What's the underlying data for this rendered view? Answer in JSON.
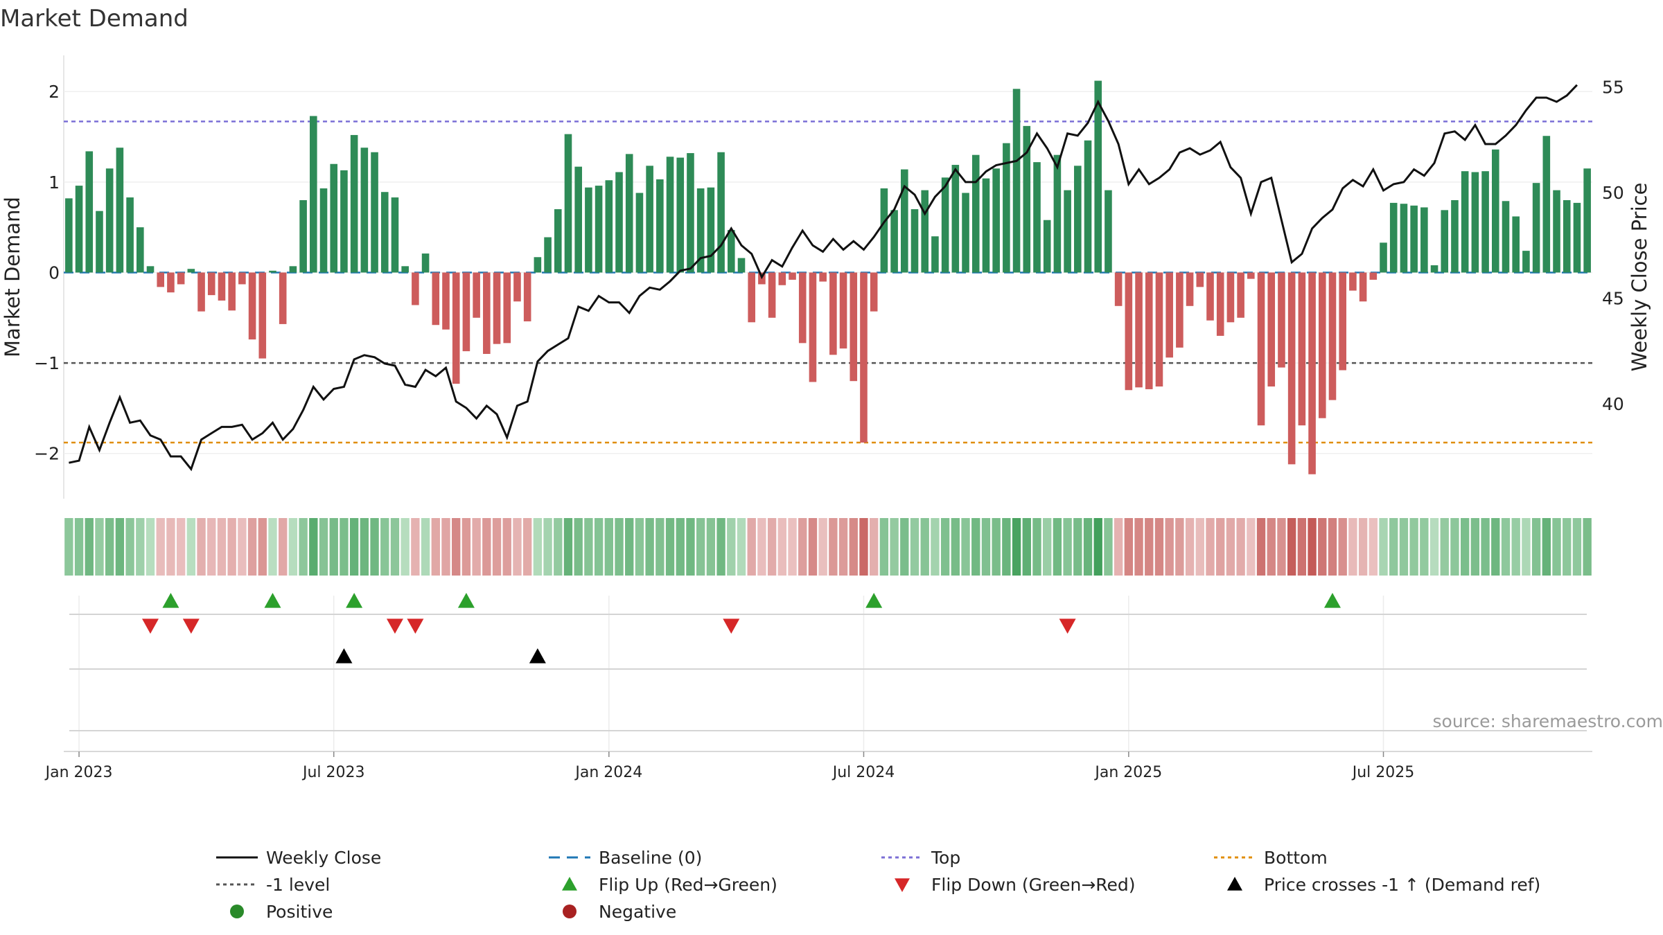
{
  "chart_data": {
    "type": "bar",
    "title": "Market Demand",
    "ylabel_left": "Market Demand",
    "ylabel_right": "Weekly Close Price",
    "ylim_left": [
      -2.5,
      2.4
    ],
    "ylim_right": [
      35.5,
      56.5
    ],
    "yticks_left": [
      2,
      1,
      0,
      -1,
      -2
    ],
    "ytick_labels_left": [
      "2",
      "1",
      "0",
      "−1",
      "−2"
    ],
    "yticks_right": [
      55,
      50,
      45,
      40
    ],
    "ytick_labels_right": [
      "55",
      "50",
      "45",
      "40"
    ],
    "x_start": "2022-12-25",
    "x_step_days": 7,
    "xtick_labels": [
      "Jan 2023",
      "Jul 2023",
      "Jan 2024",
      "Jul 2024",
      "Jan 2025",
      "Jul 2025"
    ],
    "xtick_weeks": [
      1,
      26,
      53,
      78,
      104,
      129
    ],
    "reference_lines": {
      "top": 1.67,
      "bottom": -1.88,
      "minus_one": -1,
      "baseline": 0
    },
    "demand": [
      0.82,
      0.96,
      1.34,
      0.68,
      1.15,
      1.38,
      0.83,
      0.5,
      0.07,
      -0.16,
      -0.22,
      -0.13,
      0.04,
      -0.43,
      -0.25,
      -0.31,
      -0.42,
      -0.13,
      -0.74,
      -0.95,
      0.02,
      -0.57,
      0.07,
      0.8,
      1.73,
      0.93,
      1.2,
      1.13,
      1.52,
      1.38,
      1.33,
      0.89,
      0.83,
      0.07,
      -0.36,
      0.21,
      -0.58,
      -0.63,
      -1.23,
      -0.87,
      -0.5,
      -0.9,
      -0.79,
      -0.78,
      -0.32,
      -0.54,
      0.17,
      0.39,
      0.7,
      1.53,
      1.17,
      0.94,
      0.96,
      1.02,
      1.11,
      1.31,
      0.88,
      1.18,
      1.03,
      1.28,
      1.27,
      1.32,
      0.93,
      0.94,
      1.33,
      0.47,
      0.16,
      -0.55,
      -0.13,
      -0.5,
      -0.14,
      -0.08,
      -0.78,
      -1.21,
      -0.1,
      -0.91,
      -0.84,
      -1.2,
      -1.88,
      -0.43,
      0.93,
      0.69,
      1.14,
      0.7,
      0.91,
      0.4,
      1.05,
      1.19,
      0.88,
      1.3,
      1.04,
      1.15,
      1.43,
      2.03,
      1.62,
      1.22,
      0.58,
      1.3,
      0.91,
      1.18,
      1.46,
      2.12,
      0.91,
      -0.37,
      -1.3,
      -1.27,
      -1.29,
      -1.26,
      -0.94,
      -0.83,
      -0.37,
      -0.16,
      -0.53,
      -0.7,
      -0.55,
      -0.5,
      -0.07,
      -1.69,
      -1.26,
      -1.05,
      -2.12,
      -1.69,
      -2.23,
      -1.61,
      -1.41,
      -1.08,
      -0.2,
      -0.32,
      -0.08,
      0.33,
      0.77,
      0.76,
      0.74,
      0.72,
      0.08,
      0.69,
      0.8,
      1.12,
      1.11,
      1.12,
      1.36,
      0.79,
      0.62,
      0.24,
      0.99,
      1.51,
      0.91,
      0.8,
      0.77,
      1.15
    ],
    "price": [
      37.2,
      37.3,
      38.9,
      37.8,
      39.1,
      40.3,
      39.1,
      39.2,
      38.5,
      38.3,
      37.5,
      37.5,
      36.9,
      38.3,
      38.6,
      38.9,
      38.9,
      39.0,
      38.3,
      38.6,
      39.1,
      38.3,
      38.8,
      39.7,
      40.8,
      40.2,
      40.7,
      40.8,
      42.1,
      42.3,
      42.2,
      41.9,
      41.8,
      40.9,
      40.8,
      41.6,
      41.3,
      41.7,
      40.1,
      39.8,
      39.3,
      39.9,
      39.5,
      38.4,
      39.9,
      40.1,
      42.0,
      42.5,
      42.8,
      43.1,
      44.6,
      44.4,
      45.1,
      44.8,
      44.8,
      44.3,
      45.1,
      45.5,
      45.4,
      45.8,
      46.3,
      46.4,
      46.9,
      47.0,
      47.5,
      48.3,
      47.5,
      47.1,
      46.0,
      46.8,
      46.5,
      47.4,
      48.2,
      47.5,
      47.2,
      47.8,
      47.3,
      47.7,
      47.3,
      47.9,
      48.6,
      49.2,
      50.3,
      49.9,
      49.0,
      49.8,
      50.3,
      51.1,
      50.5,
      50.5,
      51.0,
      51.3,
      51.4,
      51.5,
      51.9,
      52.8,
      52.1,
      51.2,
      52.8,
      52.7,
      53.3,
      54.3,
      53.4,
      52.3,
      50.4,
      51.1,
      50.4,
      50.7,
      51.1,
      51.9,
      52.1,
      51.8,
      52.0,
      52.4,
      51.2,
      50.7,
      49.0,
      50.5,
      50.7,
      48.7,
      46.7,
      47.1,
      48.3,
      48.8,
      49.2,
      50.2,
      50.6,
      50.3,
      51.1,
      50.1,
      50.4,
      50.5,
      51.1,
      50.8,
      51.4,
      52.8,
      52.9,
      52.5,
      53.2,
      52.3,
      52.3,
      52.7,
      53.2,
      53.9,
      54.5,
      54.5,
      54.3,
      54.6,
      55.1
    ],
    "flip_up_weeks": [
      10,
      20,
      28,
      39,
      79,
      124
    ],
    "flip_down_weeks": [
      8,
      12,
      32,
      34,
      65,
      98
    ],
    "price_cross_weeks": [
      27,
      46
    ],
    "source": "source: sharemaestro.com"
  },
  "legend": [
    {
      "label": "Weekly Close",
      "marker": "line",
      "color": "#111111"
    },
    {
      "label": "Baseline (0)",
      "marker": "dash",
      "color": "#1f77b4"
    },
    {
      "label": "Top",
      "marker": "dot",
      "color": "#7b6fd6"
    },
    {
      "label": "Bottom",
      "marker": "dot",
      "color": "#e08e0b"
    },
    {
      "label": "-1 level",
      "marker": "dot",
      "color": "#555555"
    },
    {
      "label": "Flip Up (Red→Green)",
      "marker": "triangle-up",
      "color": "#2ca02c"
    },
    {
      "label": "Flip Down (Green→Red)",
      "marker": "triangle-down",
      "color": "#d62728"
    },
    {
      "label": "Price crosses -1 ↑ (Demand ref)",
      "marker": "triangle-up",
      "color": "#000000"
    },
    {
      "label": "Positive",
      "marker": "circle",
      "color": "#2a8a2a"
    },
    {
      "label": "Negative",
      "marker": "circle",
      "color": "#a82121"
    }
  ],
  "colors": {
    "positive_bar": "#2e8b57",
    "negative_bar": "#cd5c5c",
    "price_line": "#111111",
    "baseline": "#1f77b4",
    "top": "#7b6fd6",
    "bottom": "#e08e0b",
    "minus_one": "#555555",
    "flip_up": "#2ca02c",
    "flip_down": "#d62728",
    "cross": "#000000"
  }
}
